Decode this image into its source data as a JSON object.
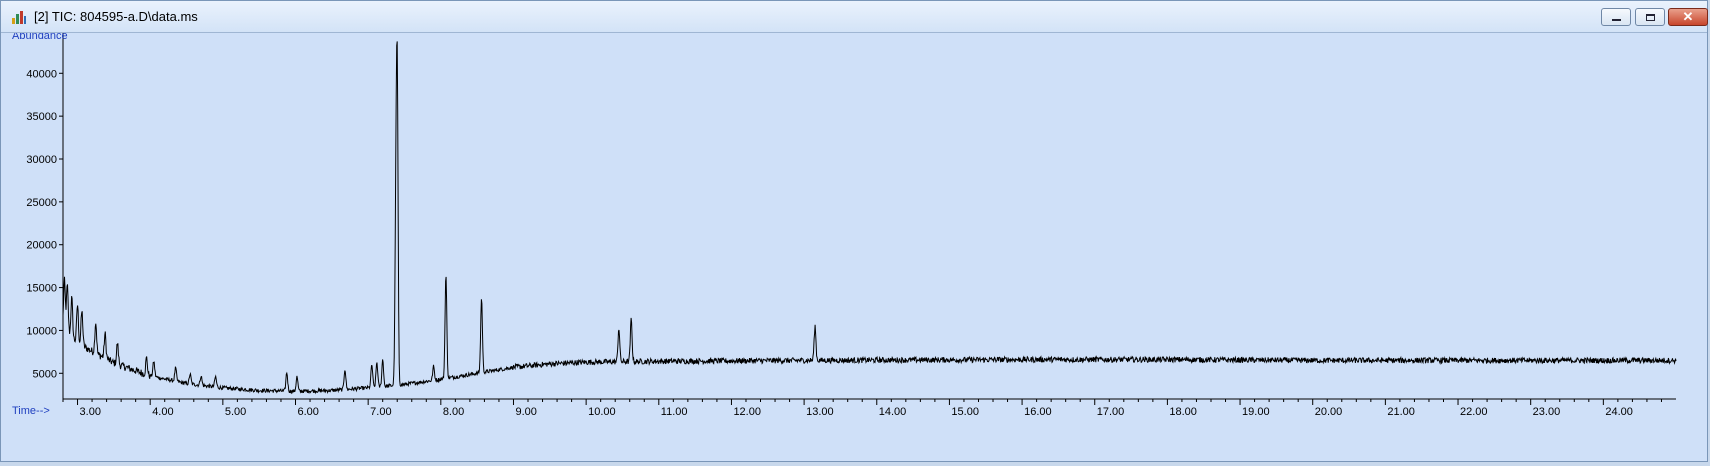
{
  "window": {
    "title": "[2] TIC: 804595-a.D\\data.ms",
    "icon": "chromatogram-app-icon",
    "buttons": {
      "minimize_icon": "minimize-icon",
      "maximize_icon": "maximize-icon",
      "close_label": "✕"
    }
  },
  "colors": {
    "plot_background": "#cfe0f8",
    "trace": "#000000",
    "axis_label": "#1f3fbf"
  },
  "chart_data": {
    "type": "line",
    "title": "",
    "xlabel": "Time-->",
    "ylabel": "Abundance",
    "xlim": [
      2.8,
      25.0
    ],
    "ylim": [
      2000,
      42000
    ],
    "y_ticks": [
      5000,
      10000,
      15000,
      20000,
      25000,
      30000,
      35000,
      40000
    ],
    "y_tick_labels": [
      "5000",
      "10000",
      "15000",
      "20000",
      "25000",
      "30000",
      "35000",
      "40000"
    ],
    "x_ticks": [
      3,
      4,
      5,
      6,
      7,
      8,
      9,
      10,
      11,
      12,
      13,
      14,
      15,
      16,
      17,
      18,
      19,
      20,
      21,
      22,
      23,
      24
    ],
    "x_tick_labels": [
      "3.00",
      "4.00",
      "5.00",
      "6.00",
      "7.00",
      "8.00",
      "9.00",
      "10.00",
      "11.00",
      "12.00",
      "13.00",
      "14.00",
      "15.00",
      "16.00",
      "17.00",
      "18.00",
      "19.00",
      "20.00",
      "21.00",
      "22.00",
      "23.00",
      "24.00"
    ],
    "grid": false,
    "series": [
      {
        "baseline": [
          [
            2.8,
            10200
          ],
          [
            3.0,
            8500
          ],
          [
            3.5,
            6200
          ],
          [
            4.0,
            4700
          ],
          [
            4.5,
            3800
          ],
          [
            5.0,
            3300
          ],
          [
            5.5,
            3000
          ],
          [
            6.0,
            2900
          ],
          [
            6.5,
            3000
          ],
          [
            7.0,
            3300
          ],
          [
            7.5,
            3700
          ],
          [
            8.0,
            4300
          ],
          [
            8.5,
            5000
          ],
          [
            9.0,
            5700
          ],
          [
            9.5,
            6100
          ],
          [
            10.0,
            6300
          ],
          [
            11.0,
            6400
          ],
          [
            13.0,
            6500
          ],
          [
            16.0,
            6600
          ],
          [
            18.0,
            6600
          ],
          [
            20.0,
            6500
          ],
          [
            25.0,
            6500
          ]
        ],
        "peaks": [
          {
            "rt": 2.82,
            "height": 15800
          },
          {
            "rt": 2.86,
            "height": 15200
          },
          {
            "rt": 2.92,
            "height": 13800
          },
          {
            "rt": 3.0,
            "height": 13000
          },
          {
            "rt": 3.06,
            "height": 12200
          },
          {
            "rt": 3.25,
            "height": 11000
          },
          {
            "rt": 3.38,
            "height": 9600
          },
          {
            "rt": 3.55,
            "height": 8500
          },
          {
            "rt": 3.95,
            "height": 6800
          },
          {
            "rt": 4.05,
            "height": 6400
          },
          {
            "rt": 4.35,
            "height": 5600
          },
          {
            "rt": 4.55,
            "height": 4900
          },
          {
            "rt": 4.7,
            "height": 4700
          },
          {
            "rt": 4.9,
            "height": 4600
          },
          {
            "rt": 5.88,
            "height": 5100
          },
          {
            "rt": 6.02,
            "height": 4600
          },
          {
            "rt": 6.68,
            "height": 5500
          },
          {
            "rt": 7.05,
            "height": 6000
          },
          {
            "rt": 7.12,
            "height": 6300
          },
          {
            "rt": 7.2,
            "height": 6600
          },
          {
            "rt": 7.4,
            "height": 38800
          },
          {
            "rt": 7.38,
            "height": 21800
          },
          {
            "rt": 7.9,
            "height": 5800
          },
          {
            "rt": 8.07,
            "height": 16500
          },
          {
            "rt": 8.56,
            "height": 13800
          },
          {
            "rt": 10.45,
            "height": 10300
          },
          {
            "rt": 10.62,
            "height": 11300
          },
          {
            "rt": 13.15,
            "height": 10500
          }
        ]
      }
    ]
  }
}
